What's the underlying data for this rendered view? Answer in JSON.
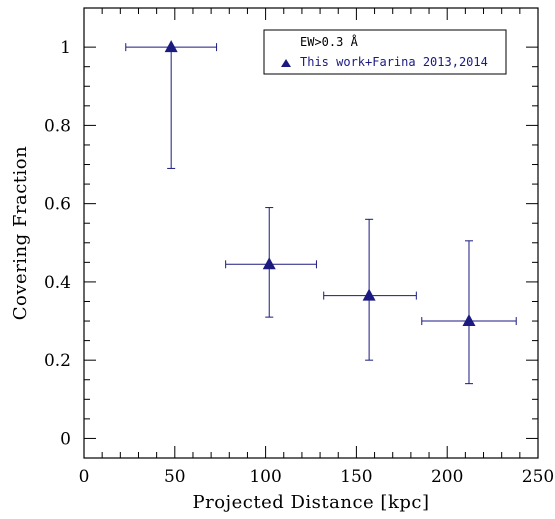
{
  "chart_data": {
    "type": "scatter",
    "xlabel": "Projected Distance [kpc]",
    "ylabel": "Covering Fraction",
    "xlim": [
      0,
      250
    ],
    "ylim": [
      -0.05,
      1.1
    ],
    "xticks": [
      "0",
      "50",
      "100",
      "150",
      "200",
      "250"
    ],
    "yticks": [
      "0",
      "0.2",
      "0.4",
      "0.6",
      "0.8",
      "1"
    ],
    "grid": false,
    "legend": {
      "title": "EW>0.3 Å",
      "entries": [
        "This work+Farina 2013,2014"
      ],
      "position": "top-right"
    },
    "series": [
      {
        "name": "This work+Farina 2013,2014",
        "color": "#1a1a80",
        "marker": "triangle",
        "points": [
          {
            "x": 48,
            "y": 1.0,
            "xerr": [
              23,
              73
            ],
            "yerr": [
              0.69,
              1.0
            ]
          },
          {
            "x": 102,
            "y": 0.445,
            "xerr": [
              78,
              128
            ],
            "yerr": [
              0.31,
              0.59
            ]
          },
          {
            "x": 157,
            "y": 0.365,
            "xerr": [
              132,
              183
            ],
            "yerr": [
              0.2,
              0.56
            ]
          },
          {
            "x": 212,
            "y": 0.3,
            "xerr": [
              186,
              238
            ],
            "yerr": [
              0.14,
              0.505
            ]
          }
        ]
      }
    ]
  }
}
